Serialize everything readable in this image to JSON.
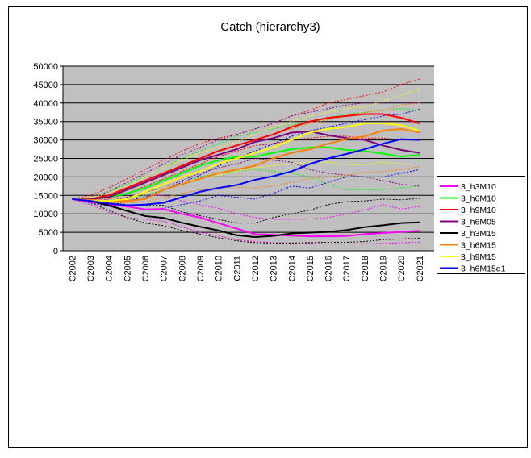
{
  "chart_data": {
    "type": "line",
    "title": "Catch (hierarchy3)",
    "categories": [
      "C2002",
      "C2003",
      "C2004",
      "C2005",
      "C2006",
      "C2007",
      "C2008",
      "C2009",
      "C2010",
      "C2011",
      "C2012",
      "C2013",
      "C2014",
      "C2015",
      "C2016",
      "C2017",
      "C2018",
      "C2019",
      "C2020",
      "C2021"
    ],
    "ylim": [
      0,
      50000
    ],
    "yticks": [
      0,
      5000,
      10000,
      15000,
      20000,
      25000,
      30000,
      35000,
      40000,
      45000,
      50000
    ],
    "grid": true,
    "legend": "right",
    "series": [
      {
        "name": "3_h3M10",
        "color": "#ff00ff",
        "values": [
          14000,
          13200,
          12500,
          12000,
          11200,
          11300,
          10000,
          9000,
          7500,
          6000,
          4500,
          4300,
          4100,
          3900,
          3900,
          4000,
          4500,
          4800,
          5100,
          5400
        ],
        "upper": [
          14000,
          13500,
          13000,
          14500,
          15000,
          15000,
          13500,
          12500,
          11500,
          10000,
          9000,
          8500,
          8500,
          8600,
          9000,
          10000,
          11000,
          12500,
          11300,
          12000
        ],
        "lower": [
          14000,
          12500,
          10500,
          9000,
          8500,
          8000,
          6500,
          5000,
          4000,
          3000,
          2500,
          2200,
          2100,
          2000,
          1800,
          1800,
          1900,
          2000,
          2200,
          2300
        ]
      },
      {
        "name": "3_h6M10",
        "color": "#00ff00",
        "values": [
          14000,
          14000,
          14500,
          15500,
          17000,
          19000,
          21000,
          23000,
          24500,
          25500,
          25500,
          26500,
          27500,
          28000,
          28000,
          27300,
          27000,
          26300,
          25500,
          26000
        ],
        "upper": [
          14000,
          14500,
          16000,
          18000,
          20000,
          22500,
          25000,
          27000,
          29000,
          31000,
          32000,
          33000,
          34000,
          35000,
          36000,
          37000,
          37500,
          38000,
          38500,
          38000
        ],
        "lower": [
          14000,
          13500,
          13500,
          14000,
          15000,
          16500,
          18000,
          20000,
          21000,
          21500,
          22000,
          21500,
          21000,
          20000,
          18000,
          16500,
          16500,
          16500,
          17000,
          17500
        ]
      },
      {
        "name": "3_h9M10",
        "color": "#ff0000",
        "values": [
          14000,
          14000,
          15000,
          17000,
          19000,
          21000,
          23000,
          25000,
          27000,
          28500,
          30000,
          31500,
          33500,
          35000,
          36000,
          36500,
          37000,
          37000,
          36000,
          34500
        ],
        "upper": [
          14000,
          15000,
          17000,
          19500,
          22000,
          24500,
          27000,
          29000,
          30500,
          31500,
          33000,
          34500,
          36500,
          38000,
          40000,
          41000,
          42000,
          43000,
          45000,
          46500
        ],
        "lower": [
          14000,
          13500,
          14000,
          15500,
          17500,
          19500,
          21500,
          23500,
          25500,
          27000,
          28500,
          29000,
          30000,
          30500,
          31000,
          31000,
          30500,
          30500,
          30000,
          30000
        ]
      },
      {
        "name": "3_h6M05",
        "color": "#800080",
        "values": [
          14000,
          14000,
          14500,
          16500,
          18500,
          20500,
          22500,
          24500,
          26000,
          27500,
          29500,
          30500,
          32000,
          32300,
          31300,
          30500,
          30000,
          28500,
          27300,
          26500
        ],
        "upper": [
          14000,
          14500,
          16000,
          18500,
          21000,
          23500,
          26000,
          28000,
          30000,
          31500,
          33000,
          34500,
          36500,
          37500,
          38500,
          39500,
          40000,
          40000,
          40000,
          40000
        ],
        "lower": [
          14000,
          13500,
          13500,
          14500,
          16000,
          17000,
          19000,
          21000,
          22500,
          23500,
          25000,
          24500,
          24000,
          22000,
          21000,
          20500,
          20000,
          19000,
          18000,
          17500
        ]
      },
      {
        "name": "3_h3M15",
        "color": "#000000",
        "values": [
          14000,
          13500,
          12300,
          10800,
          9400,
          8900,
          7600,
          6500,
          5500,
          4200,
          3700,
          4000,
          4700,
          4900,
          5100,
          5600,
          6400,
          6900,
          7500,
          7700
        ],
        "upper": [
          14000,
          13500,
          13000,
          12500,
          12300,
          12300,
          10500,
          9500,
          8500,
          7500,
          7500,
          9000,
          10000,
          11000,
          12500,
          13300,
          13500,
          14000,
          13800,
          14200
        ],
        "lower": [
          14000,
          13000,
          11000,
          9000,
          7500,
          6800,
          5500,
          4500,
          3500,
          2700,
          2200,
          2100,
          2100,
          2200,
          2300,
          2300,
          2500,
          3000,
          3200,
          3400
        ]
      },
      {
        "name": "3_h6M15",
        "color": "#ff8000",
        "values": [
          14000,
          13800,
          13500,
          13500,
          14000,
          16500,
          18000,
          19500,
          21000,
          22000,
          23000,
          25000,
          26500,
          27500,
          29000,
          30200,
          31000,
          32500,
          33000,
          32000
        ],
        "upper": [
          14000,
          14000,
          14500,
          16500,
          18500,
          21000,
          23000,
          25000,
          27000,
          28500,
          30000,
          31500,
          33000,
          34500,
          35500,
          36500,
          37500,
          38000,
          39500,
          40000
        ],
        "lower": [
          14000,
          13500,
          13000,
          13000,
          13200,
          14500,
          15500,
          16500,
          17000,
          17300,
          17000,
          17500,
          18500,
          19500,
          20000,
          20500,
          21200,
          21500,
          22000,
          22800
        ]
      },
      {
        "name": "3_h9M15",
        "color": "#ffff00",
        "values": [
          14000,
          13500,
          13500,
          14000,
          16000,
          18000,
          20000,
          21500,
          23500,
          25000,
          26500,
          28000,
          30000,
          32000,
          33000,
          33500,
          34500,
          34500,
          34000,
          32500
        ],
        "upper": [
          14000,
          14500,
          15500,
          17500,
          20000,
          22500,
          24500,
          26500,
          28000,
          29500,
          31500,
          33500,
          35000,
          36500,
          37500,
          38500,
          39000,
          40500,
          42000,
          44000
        ],
        "lower": [
          14000,
          13500,
          13500,
          14000,
          15500,
          17000,
          18500,
          19500,
          20500,
          21500,
          22500,
          23000,
          23500,
          24000,
          24000,
          23300,
          23300,
          24000,
          23500,
          23500
        ]
      },
      {
        "name": "3_h6M15d1",
        "color": "#0000ff",
        "values": [
          14000,
          13500,
          12800,
          12300,
          12500,
          13000,
          14500,
          16000,
          17000,
          17800,
          19200,
          20200,
          21500,
          23500,
          25000,
          26200,
          27500,
          29000,
          30200,
          30000
        ],
        "upper": [
          14000,
          13800,
          13500,
          13500,
          14500,
          16500,
          18500,
          20500,
          23000,
          25000,
          27000,
          29000,
          31000,
          32500,
          33500,
          34500,
          35500,
          36500,
          37000,
          38300
        ],
        "lower": [
          14000,
          13000,
          12000,
          11000,
          11000,
          11500,
          12500,
          13500,
          15000,
          14500,
          14000,
          15500,
          17500,
          17000,
          18500,
          20000,
          20000,
          20000,
          21000,
          22000
        ]
      }
    ]
  }
}
